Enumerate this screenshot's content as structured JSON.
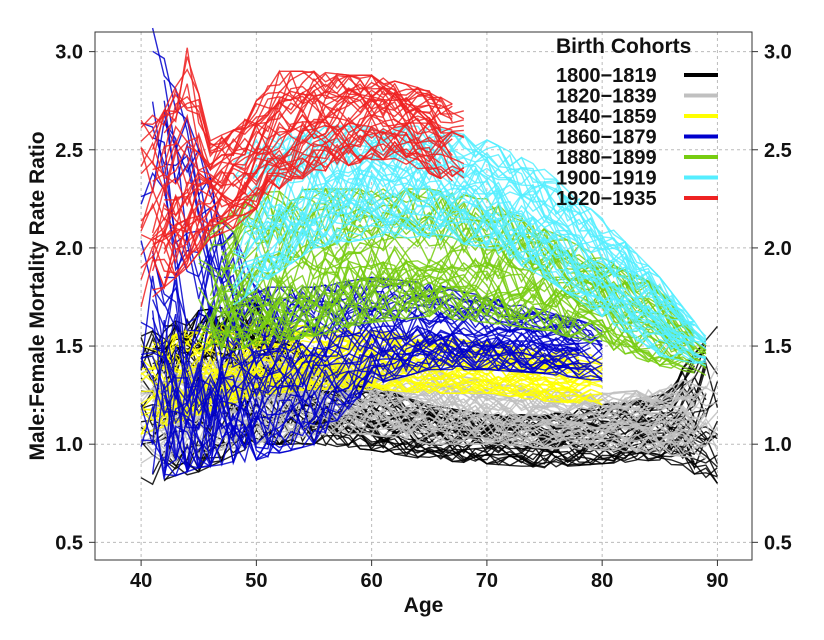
{
  "chart_data": {
    "type": "line",
    "xlabel": "Age",
    "ylabel": "Male:Female Mortality Rate Ratio",
    "xlim": [
      36,
      93
    ],
    "ylim": [
      0.41,
      3.1
    ],
    "x_ticks": [
      40,
      50,
      60,
      70,
      80,
      90
    ],
    "y_ticks": [
      0.5,
      1.0,
      1.5,
      2.0,
      2.5,
      3.0
    ],
    "x_tick_labels": [
      "40",
      "50",
      "60",
      "70",
      "80",
      "90"
    ],
    "y_tick_labels": [
      "0.5",
      "1.0",
      "1.5",
      "2.0",
      "2.5",
      "3.0"
    ],
    "y_right_tick_labels": [
      "0.5",
      "1.0",
      "1.5",
      "2.0",
      "2.5",
      "3.0"
    ],
    "grid": true,
    "legend": {
      "title": "Birth Cohorts",
      "position": "top-right"
    },
    "series": [
      {
        "name": "1800−1819",
        "color": "#000000",
        "x": [
          40,
          45,
          50,
          55,
          60,
          65,
          70,
          75,
          80,
          85,
          90
        ],
        "median": [
          1.3,
          1.4,
          1.38,
          1.22,
          1.12,
          1.08,
          1.06,
          1.05,
          1.05,
          1.08,
          1.12
        ],
        "low": [
          0.78,
          0.86,
          1.0,
          1.0,
          0.97,
          0.92,
          0.9,
          0.88,
          0.9,
          0.92,
          0.8
        ],
        "high": [
          1.55,
          1.68,
          1.72,
          1.45,
          1.3,
          1.2,
          1.15,
          1.15,
          1.2,
          1.25,
          1.6
        ]
      },
      {
        "name": "1820−1839",
        "color": "#c0c0c0",
        "x": [
          40,
          45,
          50,
          55,
          60,
          65,
          70,
          75,
          80,
          85,
          90
        ],
        "median": [
          1.12,
          1.2,
          1.25,
          1.26,
          1.24,
          1.2,
          1.16,
          1.13,
          1.12,
          1.12,
          1.12
        ],
        "low": [
          0.85,
          0.95,
          1.0,
          1.05,
          1.05,
          1.0,
          1.0,
          0.98,
          0.97,
          0.95,
          0.92
        ],
        "high": [
          1.38,
          1.42,
          1.46,
          1.45,
          1.42,
          1.38,
          1.32,
          1.28,
          1.26,
          1.28,
          1.4
        ]
      },
      {
        "name": "1840−1859",
        "color": "#ffff00",
        "x": [
          40,
          45,
          50,
          55,
          60,
          65,
          70,
          75,
          80
        ],
        "median": [
          1.25,
          1.3,
          1.38,
          1.42,
          1.42,
          1.4,
          1.38,
          1.35,
          1.32
        ],
        "low": [
          1.05,
          1.15,
          1.25,
          1.28,
          1.28,
          1.26,
          1.26,
          1.22,
          1.2
        ],
        "high": [
          1.5,
          1.6,
          1.62,
          1.6,
          1.58,
          1.55,
          1.52,
          1.48,
          1.45
        ]
      },
      {
        "name": "1860−1879",
        "color": "#0000cc",
        "x": [
          40,
          41,
          45,
          50,
          55,
          60,
          65,
          70,
          75,
          80
        ],
        "median": [
          1.6,
          1.55,
          1.3,
          1.35,
          1.5,
          1.55,
          1.55,
          1.53,
          1.5,
          1.45
        ],
        "low": [
          0.8,
          0.8,
          0.88,
          0.92,
          1.0,
          1.3,
          1.38,
          1.38,
          1.36,
          1.32
        ],
        "high": [
          2.97,
          3.12,
          2.5,
          1.8,
          1.8,
          1.85,
          1.82,
          1.75,
          1.68,
          1.6
        ]
      },
      {
        "name": "1880−1899",
        "color": "#77cc11",
        "x": [
          45,
          50,
          55,
          60,
          65,
          70,
          75,
          80,
          85,
          89
        ],
        "median": [
          1.7,
          1.75,
          1.82,
          1.88,
          1.9,
          1.88,
          1.82,
          1.75,
          1.6,
          1.45
        ],
        "low": [
          1.45,
          1.5,
          1.55,
          1.62,
          1.65,
          1.62,
          1.58,
          1.5,
          1.4,
          1.35
        ],
        "high": [
          2.05,
          2.28,
          2.3,
          2.3,
          2.3,
          2.25,
          2.1,
          1.95,
          1.8,
          1.5
        ]
      },
      {
        "name": "1900−1919",
        "color": "#55eeff",
        "x": [
          48,
          50,
          55,
          60,
          65,
          70,
          75,
          80,
          85,
          89
        ],
        "median": [
          2.0,
          2.1,
          2.25,
          2.35,
          2.35,
          2.28,
          2.1,
          1.88,
          1.65,
          1.5
        ],
        "low": [
          1.7,
          1.8,
          2.0,
          2.05,
          2.05,
          2.0,
          1.85,
          1.65,
          1.45,
          1.4
        ],
        "high": [
          2.45,
          2.55,
          2.62,
          2.62,
          2.62,
          2.55,
          2.4,
          2.15,
          1.85,
          1.55
        ]
      },
      {
        "name": "1920−1935",
        "color": "#ee2222",
        "x": [
          40,
          42,
          44,
          46,
          48,
          50,
          52,
          55,
          58,
          60,
          62,
          65,
          68
        ],
        "median": [
          2.15,
          2.2,
          2.25,
          2.3,
          2.35,
          2.45,
          2.55,
          2.62,
          2.68,
          2.72,
          2.7,
          2.62,
          2.52
        ],
        "low": [
          1.7,
          1.8,
          1.9,
          2.05,
          2.1,
          2.2,
          2.3,
          2.38,
          2.42,
          2.45,
          2.45,
          2.38,
          2.3
        ],
        "high": [
          2.65,
          2.7,
          3.02,
          2.55,
          2.6,
          2.75,
          2.9,
          2.9,
          2.88,
          2.88,
          2.85,
          2.8,
          2.7
        ]
      }
    ]
  }
}
